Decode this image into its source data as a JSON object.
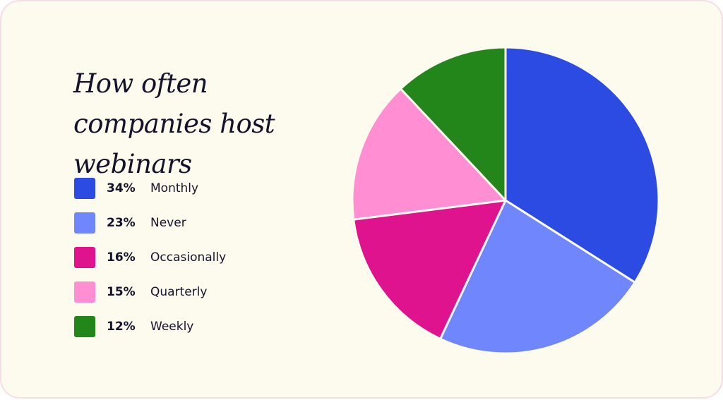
{
  "chart_data": {
    "type": "pie",
    "title": "How often companies host webinars",
    "categories": [
      "Monthly",
      "Never",
      "Occasionally",
      "Quarterly",
      "Weekly"
    ],
    "values": [
      34,
      23,
      16,
      15,
      12
    ],
    "value_labels": [
      "34%",
      "23%",
      "16%",
      "15%",
      "12%"
    ],
    "colors": [
      "#2b4be2",
      "#6f86fc",
      "#e0138e",
      "#ff8fd2",
      "#22861a"
    ]
  }
}
